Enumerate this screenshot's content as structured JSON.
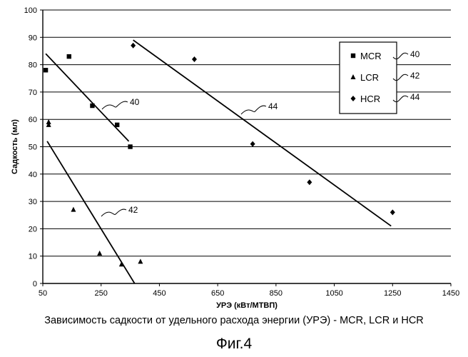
{
  "chart_data": {
    "type": "scatter",
    "xlabel": "УРЭ (кВт/МТВП)",
    "ylabel": "Садкость (мл)",
    "xticks": [
      50,
      250,
      450,
      650,
      850,
      1050,
      1250,
      1450
    ],
    "yticks": [
      0,
      10,
      20,
      30,
      40,
      50,
      60,
      70,
      80,
      90,
      100
    ],
    "xlim": [
      50,
      1450
    ],
    "ylim": [
      0,
      100
    ],
    "grid": "horizontal",
    "legend_position": "top-right",
    "series": [
      {
        "name": "MCR",
        "ref": "40",
        "marker": "square",
        "points": [
          [
            60,
            78
          ],
          [
            140,
            83
          ],
          [
            220,
            65
          ],
          [
            305,
            58
          ],
          [
            350,
            50
          ]
        ],
        "trend": [
          [
            60,
            84
          ],
          [
            345,
            52
          ]
        ]
      },
      {
        "name": "LCR",
        "ref": "42",
        "marker": "triangle",
        "points": [
          [
            70,
            59
          ],
          [
            70,
            58
          ],
          [
            155,
            27
          ],
          [
            245,
            11
          ],
          [
            320,
            7
          ],
          [
            385,
            8
          ]
        ],
        "trend": [
          [
            65,
            52
          ],
          [
            365,
            0
          ]
        ]
      },
      {
        "name": "HCR",
        "ref": "44",
        "marker": "diamond",
        "points": [
          [
            360,
            87
          ],
          [
            570,
            82
          ],
          [
            770,
            51
          ],
          [
            965,
            37
          ],
          [
            1250,
            26
          ]
        ],
        "trend": [
          [
            360,
            89
          ],
          [
            1245,
            21
          ]
        ]
      }
    ],
    "annotations": [
      {
        "text": "40",
        "target_series": "MCR"
      },
      {
        "text": "42",
        "target_series": "LCR"
      },
      {
        "text": "44",
        "target_series": "HCR"
      }
    ]
  },
  "caption": "Зависимость садкости от удельного расхода энергии (УРЭ) - MCR, LCR и HCR",
  "figure_label": "Фиг.4"
}
